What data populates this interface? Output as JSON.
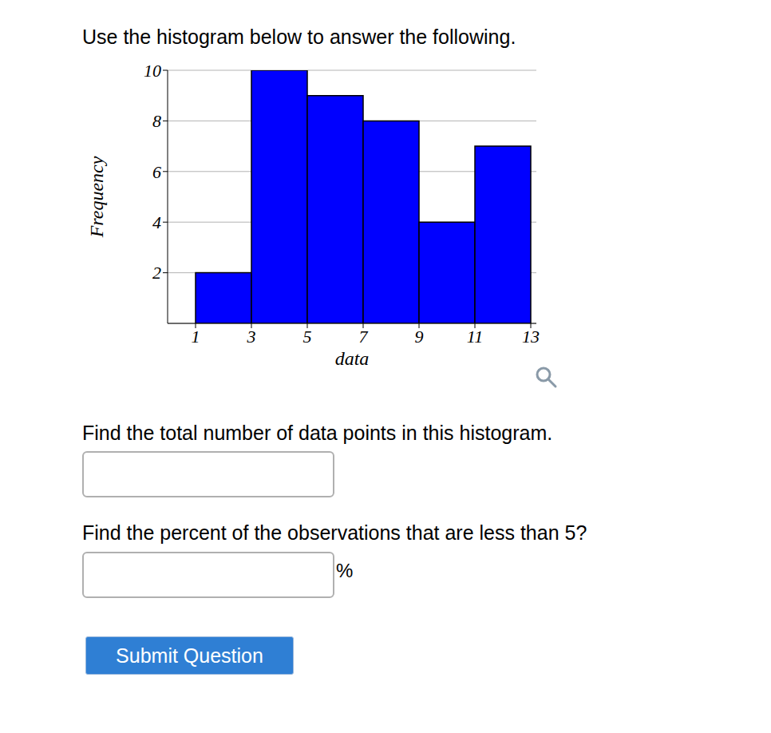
{
  "heading": "Use the histogram below to answer the following.",
  "chart_data": {
    "type": "histogram",
    "bins": [
      1,
      3,
      5,
      7,
      9,
      11,
      13
    ],
    "counts": [
      2,
      10,
      9,
      8,
      4,
      7
    ],
    "x_label": "data",
    "y_label": "Frequency",
    "xlim": [
      0,
      13.2
    ],
    "ylim": [
      0,
      10
    ],
    "xticks": [
      1,
      3,
      5,
      7,
      9,
      11,
      13
    ],
    "yticks": [
      2,
      4,
      6,
      8,
      10
    ],
    "color": "#0000ff",
    "grid": true
  },
  "questions": [
    {
      "text": "Find the total number of data points in this histogram."
    },
    {
      "text": "Find the percent of the observations that are less than 5?",
      "suffix": "%"
    }
  ],
  "button": "Submit Question"
}
